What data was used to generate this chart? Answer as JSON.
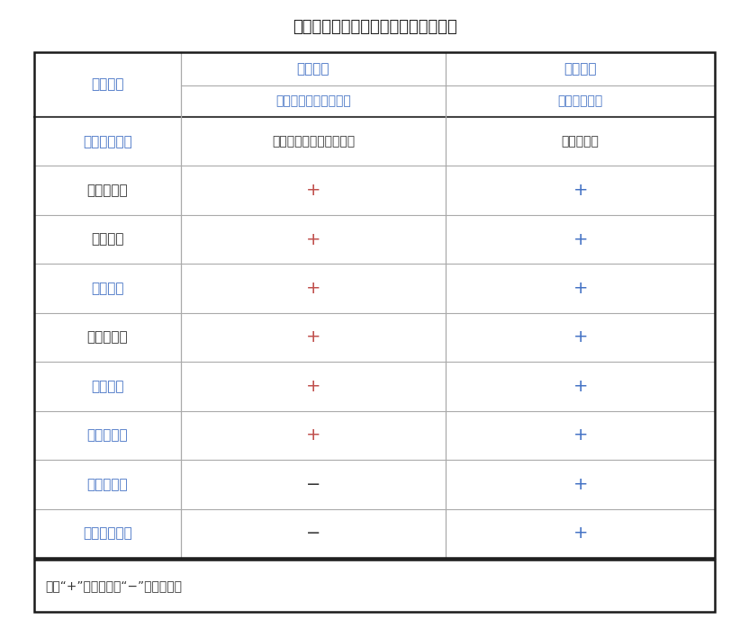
{
  "title": "阴性、阳性菌株应呈现的生化反应结果",
  "title_color": "#1a1a1a",
  "col1_header": "特征指标",
  "col2_header1": "阳性菌株",
  "col3_header1": "阴性菌株",
  "col2_header2": "枯草芽孢杆菌黑色变种",
  "col3_header2": "地衣芽孢杆菌",
  "header_color": "#4472c4",
  "rows": [
    {
      "label": "酪氨酸培养基",
      "col2": "灰色、灰黑色或黑色菌落",
      "col3": "乳白色菌落",
      "label_color": "#4472c4",
      "col2_color": "#333333",
      "col3_color": "#333333"
    },
    {
      "label": "革兰氏染色",
      "col2": "+",
      "col3": "+",
      "label_color": "#333333",
      "col2_color": "#c0504d",
      "col3_color": "#4472c4"
    },
    {
      "label": "芽孢染色",
      "col2": "+",
      "col3": "+",
      "label_color": "#333333",
      "col2_color": "#c0504d",
      "col3_color": "#4472c4"
    },
    {
      "label": "淀粉水解",
      "col2": "+",
      "col3": "+",
      "label_color": "#4472c4",
      "col2_color": "#c0504d",
      "col3_color": "#4472c4"
    },
    {
      "label": "硝酸盐还原",
      "col2": "+",
      "col3": "+",
      "label_color": "#333333",
      "col2_color": "#c0504d",
      "col3_color": "#4472c4"
    },
    {
      "label": "甘油利用",
      "col2": "+",
      "col3": "+",
      "label_color": "#4472c4",
      "col2_color": "#c0504d",
      "col3_color": "#4472c4"
    },
    {
      "label": "甘露糖利用",
      "col2": "+",
      "col3": "+",
      "label_color": "#4472c4",
      "col2_color": "#c0504d",
      "col3_color": "#4472c4"
    },
    {
      "label": "甘露醇利用",
      "col2": "−",
      "col3": "+",
      "label_color": "#4472c4",
      "col2_color": "#333333",
      "col3_color": "#4472c4"
    },
    {
      "label": "苦杏仁苷利用",
      "col2": "−",
      "col3": "+",
      "label_color": "#4472c4",
      "col2_color": "#333333",
      "col3_color": "#4472c4"
    }
  ],
  "note": "注：“+”表示阳性，“−”表示阴性。",
  "note_color": "#333333",
  "bg_color": "#ffffff",
  "border_color": "#1a1a1a",
  "inner_line_color": "#aaaaaa",
  "thick_line_color": "#444444"
}
